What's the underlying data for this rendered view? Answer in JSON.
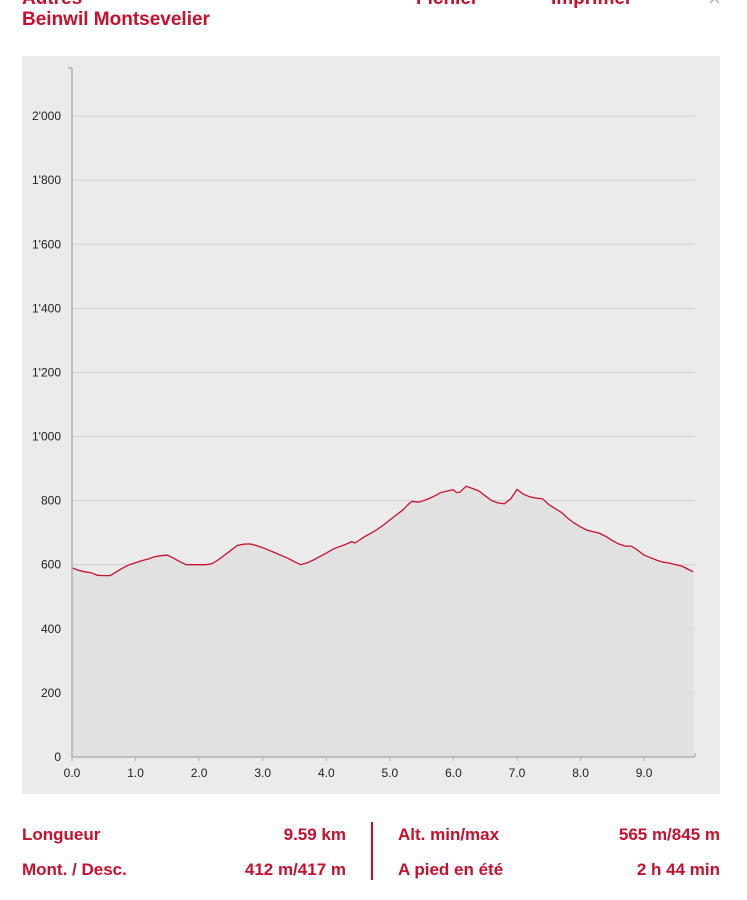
{
  "header": {
    "label": "Autres",
    "title": "Beinwil Montsevelier",
    "actions": [
      "Fichier",
      "Imprimer"
    ],
    "close": "×"
  },
  "colors": {
    "accent": "#c8102e",
    "panel": "#ebebeb",
    "fill": "#e1e1e1",
    "grid": "#d0d0d0"
  },
  "icons": {
    "close": "close-icon"
  },
  "chart_data": {
    "type": "area",
    "title": "",
    "xlabel": "",
    "ylabel": "",
    "xlim": [
      0,
      9.8
    ],
    "ylim": [
      0,
      2150
    ],
    "grid": true,
    "x_ticks": [
      "0.0",
      "1.0",
      "2.0",
      "3.0",
      "4.0",
      "5.0",
      "6.0",
      "7.0",
      "8.0",
      "9.0"
    ],
    "y_ticks": [
      "0",
      "200",
      "400",
      "600",
      "800",
      "1'000",
      "1'200",
      "1'400",
      "1'600",
      "1'800",
      "2'000"
    ],
    "x": [
      0.0,
      0.1,
      0.2,
      0.3,
      0.4,
      0.5,
      0.6,
      0.7,
      0.8,
      0.9,
      1.0,
      1.1,
      1.2,
      1.3,
      1.4,
      1.5,
      1.6,
      1.7,
      1.8,
      1.9,
      2.0,
      2.1,
      2.2,
      2.3,
      2.4,
      2.5,
      2.6,
      2.7,
      2.8,
      2.9,
      3.0,
      3.1,
      3.2,
      3.3,
      3.4,
      3.5,
      3.6,
      3.7,
      3.8,
      3.9,
      4.0,
      4.1,
      4.2,
      4.3,
      4.4,
      4.45,
      4.5,
      4.6,
      4.7,
      4.8,
      4.9,
      5.0,
      5.1,
      5.2,
      5.3,
      5.35,
      5.45,
      5.5,
      5.6,
      5.7,
      5.8,
      5.9,
      6.0,
      6.05,
      6.1,
      6.2,
      6.3,
      6.4,
      6.5,
      6.6,
      6.7,
      6.8,
      6.9,
      7.0,
      7.1,
      7.2,
      7.3,
      7.4,
      7.5,
      7.6,
      7.7,
      7.8,
      7.9,
      8.0,
      8.1,
      8.2,
      8.3,
      8.4,
      8.5,
      8.6,
      8.7,
      8.8,
      8.9,
      9.0,
      9.1,
      9.2,
      9.3,
      9.4,
      9.5,
      9.6,
      9.7,
      9.77
    ],
    "series": [
      {
        "values": [
          590,
          583,
          578,
          575,
          567,
          566,
          566,
          578,
          590,
          600,
          606,
          613,
          618,
          625,
          628,
          630,
          620,
          609,
          600,
          600,
          600,
          600,
          603,
          615,
          630,
          645,
          660,
          664,
          665,
          660,
          653,
          645,
          637,
          628,
          620,
          609,
          600,
          606,
          615,
          626,
          636,
          648,
          656,
          663,
          672,
          668,
          674,
          687,
          698,
          710,
          724,
          740,
          755,
          770,
          790,
          798,
          795,
          798,
          805,
          814,
          825,
          830,
          834,
          825,
          826,
          845,
          838,
          830,
          815,
          800,
          793,
          790,
          805,
          835,
          820,
          812,
          808,
          806,
          788,
          775,
          763,
          745,
          730,
          718,
          708,
          703,
          698,
          688,
          675,
          665,
          658,
          658,
          645,
          630,
          622,
          614,
          608,
          605,
          600,
          595,
          585,
          578
        ]
      }
    ]
  },
  "stats": {
    "length_label": "Longueur",
    "length_value": "9.59 km",
    "ascent_label": "Mont. / Desc.",
    "ascent_value": "412 m/417 m",
    "alt_label": "Alt. min/max",
    "alt_value": "565 m/845 m",
    "time_label": "A pied en été",
    "time_value": "2 h 44 min"
  }
}
